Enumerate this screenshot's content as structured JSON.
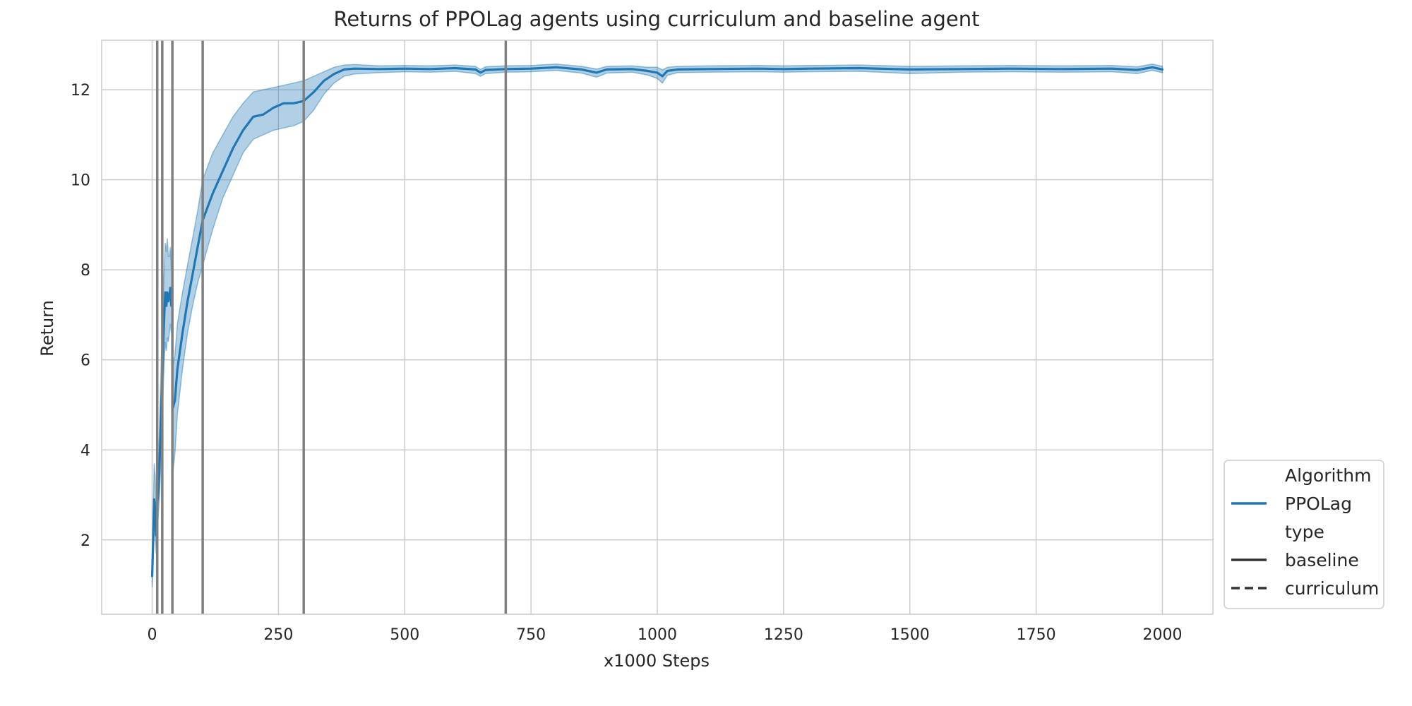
{
  "chart_data": {
    "type": "line",
    "title": "Returns of PPOLag agents using curriculum and baseline agent",
    "xlabel": "x1000 Steps",
    "ylabel": "Return",
    "xlim": [
      -100,
      2100
    ],
    "ylim": [
      0.35,
      13.1
    ],
    "xticks": [
      0,
      250,
      500,
      750,
      1000,
      1250,
      1500,
      1750,
      2000
    ],
    "yticks": [
      2,
      4,
      6,
      8,
      10,
      12
    ],
    "grid": true,
    "vertical_lines": [
      10,
      20,
      40,
      100,
      300,
      700
    ],
    "colors": {
      "series": "#1f77b4",
      "band": "#1f77b4",
      "vline": "#808080",
      "grid": "#cccccc"
    },
    "legend": {
      "placement": "outside-right-bottom",
      "entries": [
        {
          "label": "Algorithm",
          "kind": "header"
        },
        {
          "label": "PPOLag",
          "kind": "line",
          "color": "#1f77b4",
          "dash": "solid"
        },
        {
          "label": "type",
          "kind": "header"
        },
        {
          "label": "baseline",
          "kind": "line",
          "color": "#333333",
          "dash": "solid"
        },
        {
          "label": "curriculum",
          "kind": "line",
          "color": "#333333",
          "dash": "dashed"
        }
      ]
    },
    "series": [
      {
        "type_label": "curriculum",
        "dash": "dashed",
        "x": [
          0,
          2,
          4,
          6,
          8,
          10,
          12,
          14,
          16,
          18,
          20,
          22,
          24,
          26,
          28,
          30,
          32,
          34,
          36,
          38,
          40
        ],
        "y": [
          1.2,
          2.0,
          2.9,
          2.7,
          2.1,
          2.8,
          3.0,
          3.5,
          4.2,
          5.0,
          5.6,
          6.4,
          7.0,
          7.5,
          7.2,
          7.5,
          7.3,
          7.4,
          7.6,
          7.2,
          7.5
        ],
        "lower": [
          0.95,
          1.5,
          2.3,
          2.1,
          1.7,
          2.3,
          2.5,
          2.9,
          3.4,
          4.1,
          4.7,
          5.4,
          6.0,
          6.4,
          6.2,
          6.5,
          6.4,
          6.6,
          6.8,
          6.6,
          6.8
        ],
        "upper": [
          1.5,
          2.6,
          3.7,
          3.4,
          2.8,
          3.4,
          3.7,
          4.3,
          5.1,
          6.0,
          6.6,
          7.4,
          8.0,
          8.6,
          8.4,
          8.7,
          8.3,
          8.3,
          8.5,
          8.0,
          8.2
        ]
      },
      {
        "type_label": "baseline",
        "dash": "solid",
        "x": [
          40,
          45,
          50,
          60,
          70,
          80,
          90,
          100,
          110,
          120,
          140,
          160,
          180,
          200,
          220,
          240,
          260,
          280,
          300,
          320,
          340,
          360,
          380,
          400,
          450,
          500,
          550,
          600,
          640,
          650,
          660,
          700,
          750,
          800,
          850,
          880,
          900,
          950,
          980,
          1000,
          1010,
          1020,
          1040,
          1100,
          1200,
          1250,
          1300,
          1400,
          1500,
          1600,
          1700,
          1800,
          1900,
          1950,
          1980,
          2000
        ],
        "y": [
          4.9,
          5.1,
          5.8,
          6.6,
          7.3,
          7.9,
          8.5,
          9.1,
          9.4,
          9.7,
          10.2,
          10.7,
          11.1,
          11.4,
          11.45,
          11.6,
          11.7,
          11.7,
          11.75,
          11.95,
          12.2,
          12.35,
          12.45,
          12.47,
          12.46,
          12.47,
          12.46,
          12.48,
          12.45,
          12.38,
          12.44,
          12.46,
          12.47,
          12.5,
          12.45,
          12.38,
          12.45,
          12.46,
          12.42,
          12.38,
          12.3,
          12.42,
          12.45,
          12.46,
          12.47,
          12.46,
          12.47,
          12.48,
          12.45,
          12.46,
          12.47,
          12.46,
          12.47,
          12.44,
          12.5,
          12.45
        ],
        "lower": [
          3.4,
          3.9,
          4.8,
          5.8,
          6.6,
          7.2,
          7.7,
          8.1,
          8.5,
          8.9,
          9.6,
          10.1,
          10.6,
          10.9,
          11.0,
          11.1,
          11.15,
          11.2,
          11.3,
          11.55,
          11.9,
          12.15,
          12.3,
          12.35,
          12.38,
          12.4,
          12.39,
          12.41,
          12.36,
          12.3,
          12.36,
          12.39,
          12.4,
          12.43,
          12.37,
          12.28,
          12.37,
          12.39,
          12.33,
          12.25,
          12.15,
          12.32,
          12.38,
          12.39,
          12.4,
          12.39,
          12.4,
          12.41,
          12.36,
          12.39,
          12.4,
          12.39,
          12.4,
          12.36,
          12.43,
          12.38
        ],
        "upper": [
          5.8,
          6.1,
          6.8,
          7.5,
          8.1,
          8.7,
          9.3,
          10.0,
          10.3,
          10.6,
          11.0,
          11.4,
          11.7,
          11.95,
          12.0,
          12.05,
          12.1,
          12.15,
          12.2,
          12.3,
          12.4,
          12.5,
          12.55,
          12.56,
          12.53,
          12.54,
          12.53,
          12.55,
          12.52,
          12.45,
          12.51,
          12.53,
          12.54,
          12.57,
          12.52,
          12.46,
          12.52,
          12.53,
          12.5,
          12.5,
          12.44,
          12.5,
          12.52,
          12.53,
          12.54,
          12.53,
          12.54,
          12.55,
          12.52,
          12.53,
          12.54,
          12.53,
          12.54,
          12.51,
          12.57,
          12.52
        ]
      }
    ]
  }
}
